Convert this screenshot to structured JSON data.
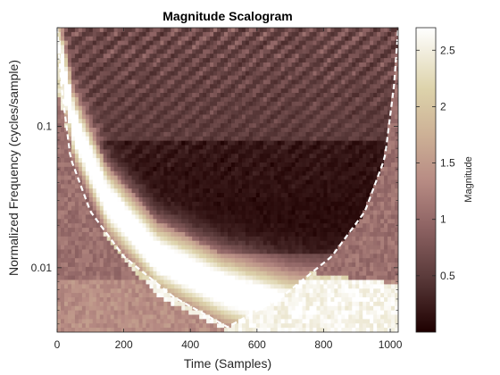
{
  "chart_data": {
    "type": "heatmap",
    "title": "Magnitude Scalogram",
    "xlabel": "Time (Samples)",
    "ylabel": "Normalized Frequency  (cycles/sample)",
    "xlim": [
      0,
      1024
    ],
    "ylim": [
      0.0035,
      0.5
    ],
    "yscale": "log",
    "x_ticks": [
      0,
      200,
      400,
      600,
      800,
      1000
    ],
    "x_tick_labels": [
      "0",
      "200",
      "400",
      "600",
      "800",
      "1000"
    ],
    "y_ticks": [
      0.01,
      0.1
    ],
    "y_tick_labels": [
      "0.01",
      "0.1"
    ],
    "colorbar": {
      "label": "Magnitude",
      "range": [
        0,
        2.7
      ],
      "ticks": [
        0.5,
        1,
        1.5,
        2,
        2.5
      ],
      "tick_labels": [
        "0.5",
        "1",
        "1.5",
        "2",
        "2.5"
      ],
      "colormap": "pink"
    },
    "chirp_ridge": {
      "description_points": [
        {
          "x": 10,
          "y": 0.3
        },
        {
          "x": 50,
          "y": 0.1
        },
        {
          "x": 150,
          "y": 0.03
        },
        {
          "x": 300,
          "y": 0.012
        },
        {
          "x": 500,
          "y": 0.007
        },
        {
          "x": 700,
          "y": 0.005
        },
        {
          "x": 1024,
          "y": 0.004
        }
      ],
      "peak_magnitude": 2.7
    },
    "cone_of_influence": {
      "style": "dashed",
      "color": "#ffffff",
      "points": [
        {
          "x": 0,
          "y": 0.5
        },
        {
          "x": 12,
          "y": 0.2
        },
        {
          "x": 40,
          "y": 0.06
        },
        {
          "x": 100,
          "y": 0.025
        },
        {
          "x": 200,
          "y": 0.012
        },
        {
          "x": 350,
          "y": 0.0062
        },
        {
          "x": 512,
          "y": 0.0038
        },
        {
          "x": 674,
          "y": 0.0062
        },
        {
          "x": 824,
          "y": 0.012
        },
        {
          "x": 924,
          "y": 0.025
        },
        {
          "x": 984,
          "y": 0.06
        },
        {
          "x": 1012,
          "y": 0.2
        },
        {
          "x": 1024,
          "y": 0.5
        }
      ]
    }
  }
}
